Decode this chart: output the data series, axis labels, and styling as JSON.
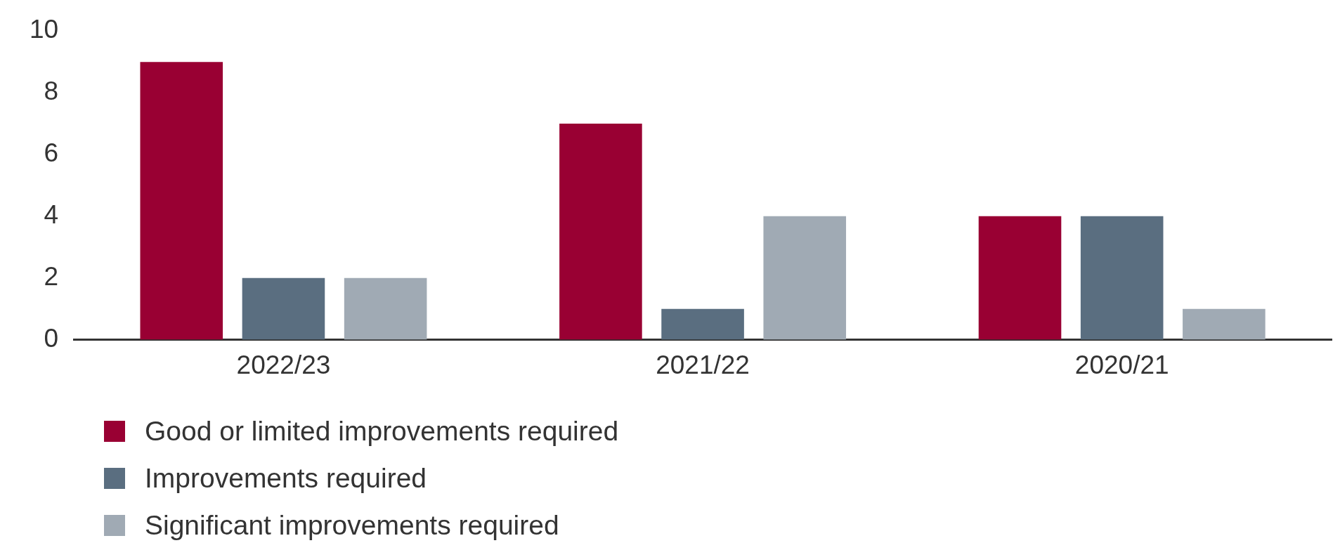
{
  "chart_data": {
    "type": "bar",
    "categories": [
      "2022/23",
      "2021/22",
      "2020/21"
    ],
    "series": [
      {
        "name": "Good or limited improvements required",
        "color": "#990033",
        "values": [
          9,
          7,
          4
        ]
      },
      {
        "name": "Improvements required",
        "color": "#5a6e80",
        "values": [
          2,
          1,
          4
        ]
      },
      {
        "name": "Significant improvements required",
        "color": "#a0aab4",
        "values": [
          2,
          4,
          1
        ]
      }
    ],
    "ylim": [
      0,
      10
    ],
    "yticks": [
      0,
      2,
      4,
      6,
      8,
      10
    ],
    "grid": false,
    "legend": "bottom left"
  }
}
